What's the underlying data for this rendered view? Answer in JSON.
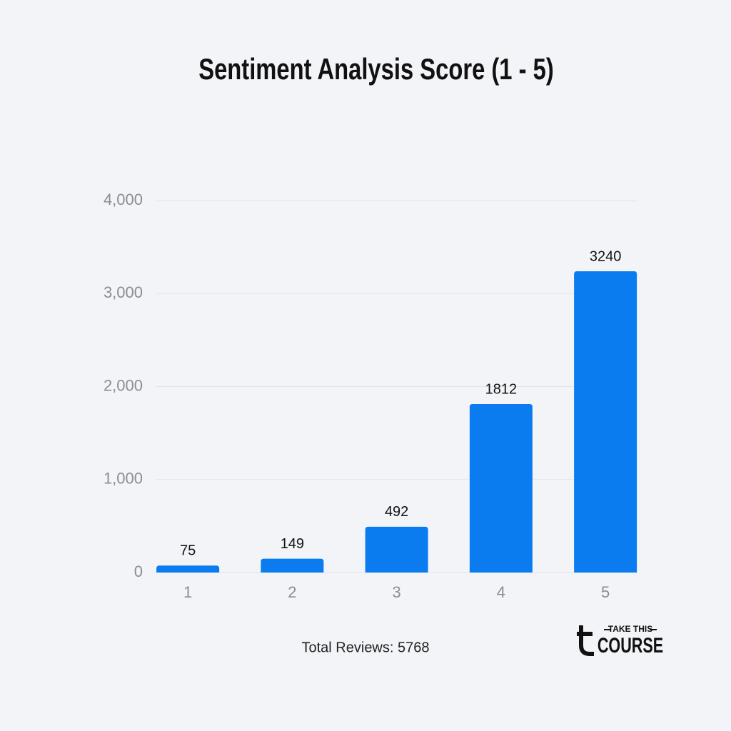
{
  "chart_data": {
    "type": "bar",
    "title": "Sentiment Analysis Score (1 - 5)",
    "categories": [
      "1",
      "2",
      "3",
      "4",
      "5"
    ],
    "values": [
      75,
      149,
      492,
      1812,
      3240
    ],
    "color": "#0a7cf0",
    "ylim": [
      0,
      4000
    ],
    "yticks": [
      0,
      {
        "value": 1000,
        "label": "1,000"
      },
      {
        "value": 2000,
        "label": "2,000"
      },
      {
        "value": 3000,
        "label": "3,000"
      },
      {
        "value": 4000,
        "label": "4,000"
      }
    ],
    "grid": true,
    "annotation": "Total Reviews: 5768",
    "brand": {
      "top": "TAKE THIS",
      "bottom": "COURSE"
    }
  }
}
